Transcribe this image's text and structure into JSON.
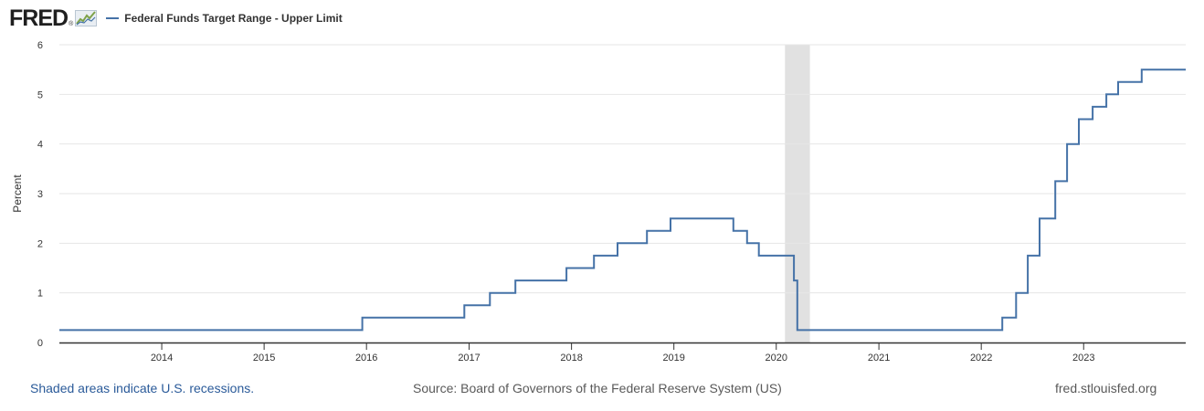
{
  "header": {
    "logo_text": "FRED",
    "logo_reg": "®",
    "logo_icon": "fred-graph-icon"
  },
  "chart_data": {
    "type": "line",
    "step": true,
    "title": "",
    "xlabel": "",
    "ylabel": "Percent",
    "ylim": [
      0,
      6
    ],
    "y_ticks": [
      "0",
      "1",
      "2",
      "3",
      "4",
      "5",
      "6"
    ],
    "x_ticks": [
      "2014",
      "2015",
      "2016",
      "2017",
      "2018",
      "2019",
      "2020",
      "2021",
      "2022",
      "2023"
    ],
    "xlim": [
      "2013-01-01",
      "2023-12-31"
    ],
    "grid": true,
    "legend": "top-left",
    "recessions": [
      {
        "start": "2020-02-01",
        "end": "2020-04-30"
      }
    ],
    "series": [
      {
        "name": "Federal Funds Target Range - Upper Limit",
        "color": "#4572a7",
        "points": [
          [
            "2013-01-01",
            0.25
          ],
          [
            "2015-12-17",
            0.5
          ],
          [
            "2016-12-15",
            0.75
          ],
          [
            "2017-03-16",
            1.0
          ],
          [
            "2017-06-15",
            1.25
          ],
          [
            "2017-12-14",
            1.5
          ],
          [
            "2018-03-22",
            1.75
          ],
          [
            "2018-06-14",
            2.0
          ],
          [
            "2018-09-27",
            2.25
          ],
          [
            "2018-12-20",
            2.5
          ],
          [
            "2019-08-01",
            2.25
          ],
          [
            "2019-09-19",
            2.0
          ],
          [
            "2019-10-31",
            1.75
          ],
          [
            "2020-03-04",
            1.25
          ],
          [
            "2020-03-16",
            0.25
          ],
          [
            "2022-03-17",
            0.5
          ],
          [
            "2022-05-05",
            1.0
          ],
          [
            "2022-06-16",
            1.75
          ],
          [
            "2022-07-28",
            2.5
          ],
          [
            "2022-09-22",
            3.25
          ],
          [
            "2022-11-03",
            4.0
          ],
          [
            "2022-12-15",
            4.5
          ],
          [
            "2023-02-02",
            4.75
          ],
          [
            "2023-03-23",
            5.0
          ],
          [
            "2023-05-04",
            5.25
          ],
          [
            "2023-07-27",
            5.5
          ],
          [
            "2023-12-31",
            5.5
          ]
        ]
      }
    ]
  },
  "footer": {
    "recession_note": "Shaded areas indicate U.S. recessions.",
    "source": "Source: Board of Governors of the Federal Reserve System (US)",
    "site": "fred.stlouisfed.org"
  }
}
